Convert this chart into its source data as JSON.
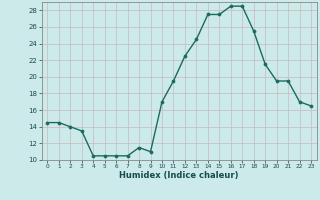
{
  "xlabel": "Humidex (Indice chaleur)",
  "x": [
    0,
    1,
    2,
    3,
    4,
    5,
    6,
    7,
    8,
    9,
    10,
    11,
    12,
    13,
    14,
    15,
    16,
    17,
    18,
    19,
    20,
    21,
    22,
    23
  ],
  "y": [
    14.5,
    14.5,
    14.0,
    13.5,
    10.5,
    10.5,
    10.5,
    10.5,
    11.5,
    11.0,
    17.0,
    19.5,
    22.5,
    24.5,
    27.5,
    27.5,
    28.5,
    28.5,
    25.5,
    21.5,
    19.5,
    19.5,
    17.0,
    16.5
  ],
  "ylim": [
    10,
    29
  ],
  "xlim": [
    -0.5,
    23.5
  ],
  "yticks": [
    10,
    12,
    14,
    16,
    18,
    20,
    22,
    24,
    26,
    28
  ],
  "xticks": [
    0,
    1,
    2,
    3,
    4,
    5,
    6,
    7,
    8,
    9,
    10,
    11,
    12,
    13,
    14,
    15,
    16,
    17,
    18,
    19,
    20,
    21,
    22,
    23
  ],
  "line_color": "#1a6b5e",
  "marker_color": "#1a6b5e",
  "bg_color": "#cceaea",
  "grid_color_major": "#c8b8b8",
  "grid_color_minor": "#c8b8b8",
  "axis_color": "#888888",
  "text_color": "#1a4a4a",
  "xlabel_color": "#1a4a4a"
}
